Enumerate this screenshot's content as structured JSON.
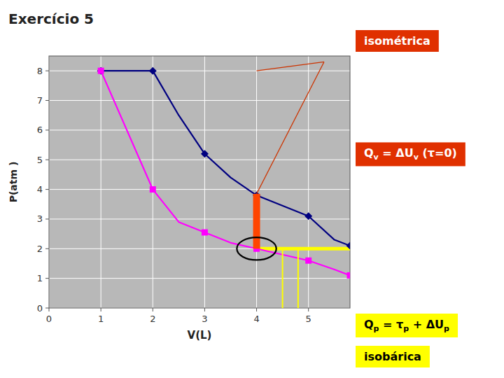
{
  "chart_data": {
    "type": "line",
    "title": "Exercício 5",
    "x_label": "V(L)",
    "y_label": "P(atm )",
    "xlim": [
      0,
      5.8
    ],
    "ylim": [
      0,
      8.5
    ],
    "xticks": [
      0,
      1,
      2,
      3,
      4,
      5
    ],
    "yticks": [
      0,
      1,
      2,
      3,
      4,
      5,
      6,
      7,
      8
    ],
    "grid": true,
    "background": "#b8b8b8",
    "series": [
      {
        "type": "line",
        "color": "#000080",
        "x": [
          1,
          2,
          2.5,
          3,
          3.5,
          4,
          5,
          5.5,
          5.8
        ],
        "values": [
          8,
          8,
          6.5,
          5.2,
          4.4,
          3.8,
          3.1,
          2.3,
          2.1
        ]
      },
      {
        "type": "scatter",
        "marker": "diamond",
        "color": "#000080",
        "x": [
          1,
          2,
          3,
          4,
          5,
          5.8
        ],
        "values": [
          8,
          8,
          5.2,
          3.8,
          3.1,
          2.1
        ]
      },
      {
        "type": "line",
        "color": "#ff00ff",
        "x": [
          1,
          2,
          2.5,
          3,
          3.5,
          4,
          5,
          5.5,
          5.8
        ],
        "values": [
          8.0,
          4.0,
          2.9,
          2.55,
          2.2,
          2.0,
          1.6,
          1.3,
          1.1
        ]
      },
      {
        "type": "scatter",
        "marker": "square",
        "color": "#ff00ff",
        "x": [
          1,
          2,
          3,
          4,
          5,
          5.8
        ],
        "values": [
          8.0,
          4.0,
          2.55,
          2.0,
          1.6,
          1.1
        ]
      }
    ],
    "isobaric": {
      "y": 2.0,
      "x_start": 4.0,
      "x_end": 5.8,
      "color": "#ffff00"
    },
    "isometric": {
      "x": 4.0,
      "y_bottom": 2.0,
      "y_top": 3.85,
      "color": "#ff4500"
    },
    "circle": {
      "x": 4.0,
      "y": 2.0,
      "r": 0.38,
      "color": "#000000"
    },
    "connectors": [
      {
        "x": [
          5.3,
          4.0
        ],
        "values": [
          8.3,
          8.0
        ],
        "color": "#cc3300"
      },
      {
        "x": [
          5.3,
          4.0
        ],
        "values": [
          8.3,
          3.85
        ],
        "color": "#cc3300"
      },
      {
        "x": [
          4.5,
          4.5
        ],
        "values": [
          0,
          2.0
        ],
        "color": "#ffff00"
      },
      {
        "x": [
          4.8,
          4.8
        ],
        "values": [
          0,
          2.0
        ],
        "color": "#ffff00"
      }
    ],
    "annotations": [
      {
        "parts": [
          {
            "text": "isométrica"
          }
        ],
        "color": "#e03000",
        "text_color": "#ffffff"
      },
      {
        "parts": [
          {
            "text": "Q"
          },
          {
            "text": "v",
            "sub": true
          },
          {
            "text": " = ΔU"
          },
          {
            "text": "v",
            "sub": true
          },
          {
            "text": "  (τ=0)"
          }
        ],
        "color": "#e03000",
        "text_color": "#ffffff"
      },
      {
        "parts": [
          {
            "text": "Q"
          },
          {
            "text": "p",
            "sub": true
          },
          {
            "text": " = τ"
          },
          {
            "text": "p",
            "sub": true
          },
          {
            "text": " + ΔU"
          },
          {
            "text": "p",
            "sub": true
          }
        ],
        "color": "#ffff00",
        "text_color": "#000000"
      },
      {
        "parts": [
          {
            "text": "isobárica"
          }
        ],
        "color": "#ffff00",
        "text_color": "#000000"
      }
    ]
  }
}
